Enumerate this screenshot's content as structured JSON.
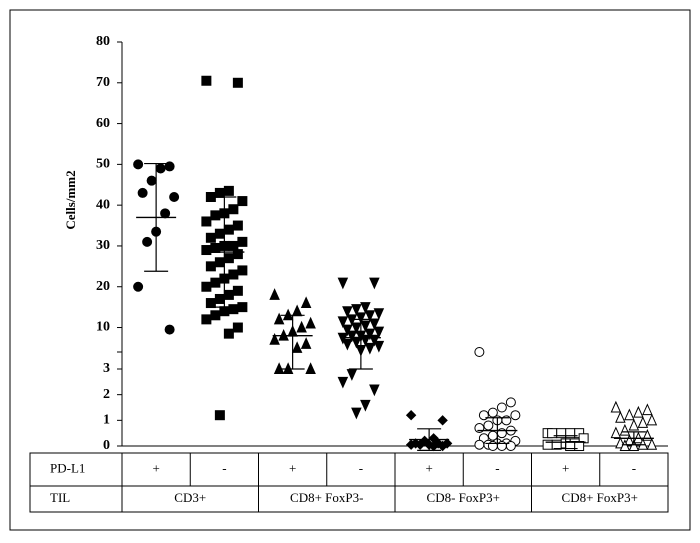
{
  "chart_data": {
    "type": "dot",
    "ylabel": "Cells/mm2",
    "ylim": [
      0,
      80
    ],
    "ybreak": [
      3,
      4
    ],
    "yticks": [
      0,
      1,
      2,
      3,
      10,
      20,
      30,
      40,
      50,
      60,
      70,
      80
    ],
    "row_labels": [
      "PD-L1",
      "TIL"
    ],
    "groups": [
      {
        "name": "CD3+",
        "subgroups": [
          {
            "pdl1": "+",
            "marker": "circle",
            "filled": true,
            "mean": 37,
            "sd": 13.2,
            "values": [
              50,
              49.5,
              49,
              46,
              43,
              42,
              38,
              33.5,
              31,
              20,
              9.5
            ]
          },
          {
            "pdl1": "-",
            "marker": "square",
            "filled": true,
            "mean": 28.5,
            "sd": 13.5,
            "values": [
              70.5,
              70,
              43.5,
              43,
              42,
              41,
              39,
              38,
              37.5,
              36,
              35,
              34,
              33,
              32,
              31,
              30,
              30,
              29.5,
              29,
              28,
              27,
              26,
              25,
              24,
              23,
              22,
              21,
              20,
              19,
              18,
              17,
              16,
              15,
              14.5,
              14,
              13,
              12,
              10,
              8.5,
              1.2
            ]
          }
        ]
      },
      {
        "name": "CD8+ FoxP3-",
        "subgroups": [
          {
            "pdl1": "+",
            "marker": "triangle",
            "filled": true,
            "mean": 8,
            "sd": 5,
            "values": [
              18,
              16,
              14,
              13,
              12,
              11,
              10,
              9,
              8,
              7,
              6,
              5,
              3,
              3,
              3
            ]
          },
          {
            "pdl1": "-",
            "marker": "triangle-down",
            "filled": true,
            "mean": 7.5,
            "sd": 4.5,
            "values": [
              21,
              21,
              15,
              14.5,
              14,
              13.5,
              13,
              12.5,
              12,
              11.5,
              11,
              10.5,
              10,
              9.5,
              9,
              8.5,
              8,
              8,
              7.5,
              7,
              7,
              6.5,
              6,
              5.5,
              5,
              4.5,
              2.8,
              2.5,
              2.2,
              1.6,
              1.3
            ]
          }
        ]
      },
      {
        "name": "CD8- FoxP3+",
        "subgroups": [
          {
            "pdl1": "+",
            "marker": "diamond",
            "filled": true,
            "mean": 0.25,
            "sd": 0.42,
            "values": [
              1.2,
              1.0,
              0.3,
              0.2,
              0.1,
              0.1,
              0.1,
              0.05,
              0.05,
              0.05,
              0,
              0
            ]
          },
          {
            "pdl1": "-",
            "marker": "circle",
            "filled": false,
            "mean": 0.6,
            "sd": 0.5,
            "values": [
              4,
              1.7,
              1.5,
              1.3,
              1.2,
              1.2,
              1.0,
              1.0,
              0.8,
              0.7,
              0.6,
              0.5,
              0.4,
              0.3,
              0.2,
              0.1,
              0.1,
              0.05,
              0.05,
              0,
              0,
              0
            ]
          }
        ]
      },
      {
        "name": "CD8+ FoxP3+",
        "subgroups": [
          {
            "pdl1": "+",
            "marker": "square",
            "filled": false,
            "mean": 0.15,
            "sd": 0.25,
            "values": [
              0.5,
              0.5,
              0.5,
              0.5,
              0.5,
              0.3,
              0.1,
              0.1,
              0.05,
              0.05,
              0,
              0
            ]
          },
          {
            "pdl1": "-",
            "marker": "triangle",
            "filled": false,
            "mean": 0.3,
            "sd": 0.25,
            "values": [
              1.5,
              1.4,
              1.3,
              1.2,
              1.1,
              1.0,
              0.9,
              0.8,
              0.6,
              0.5,
              0.4,
              0.3,
              0.2,
              0.1,
              0.05,
              0.05,
              0,
              0
            ]
          }
        ]
      }
    ]
  }
}
